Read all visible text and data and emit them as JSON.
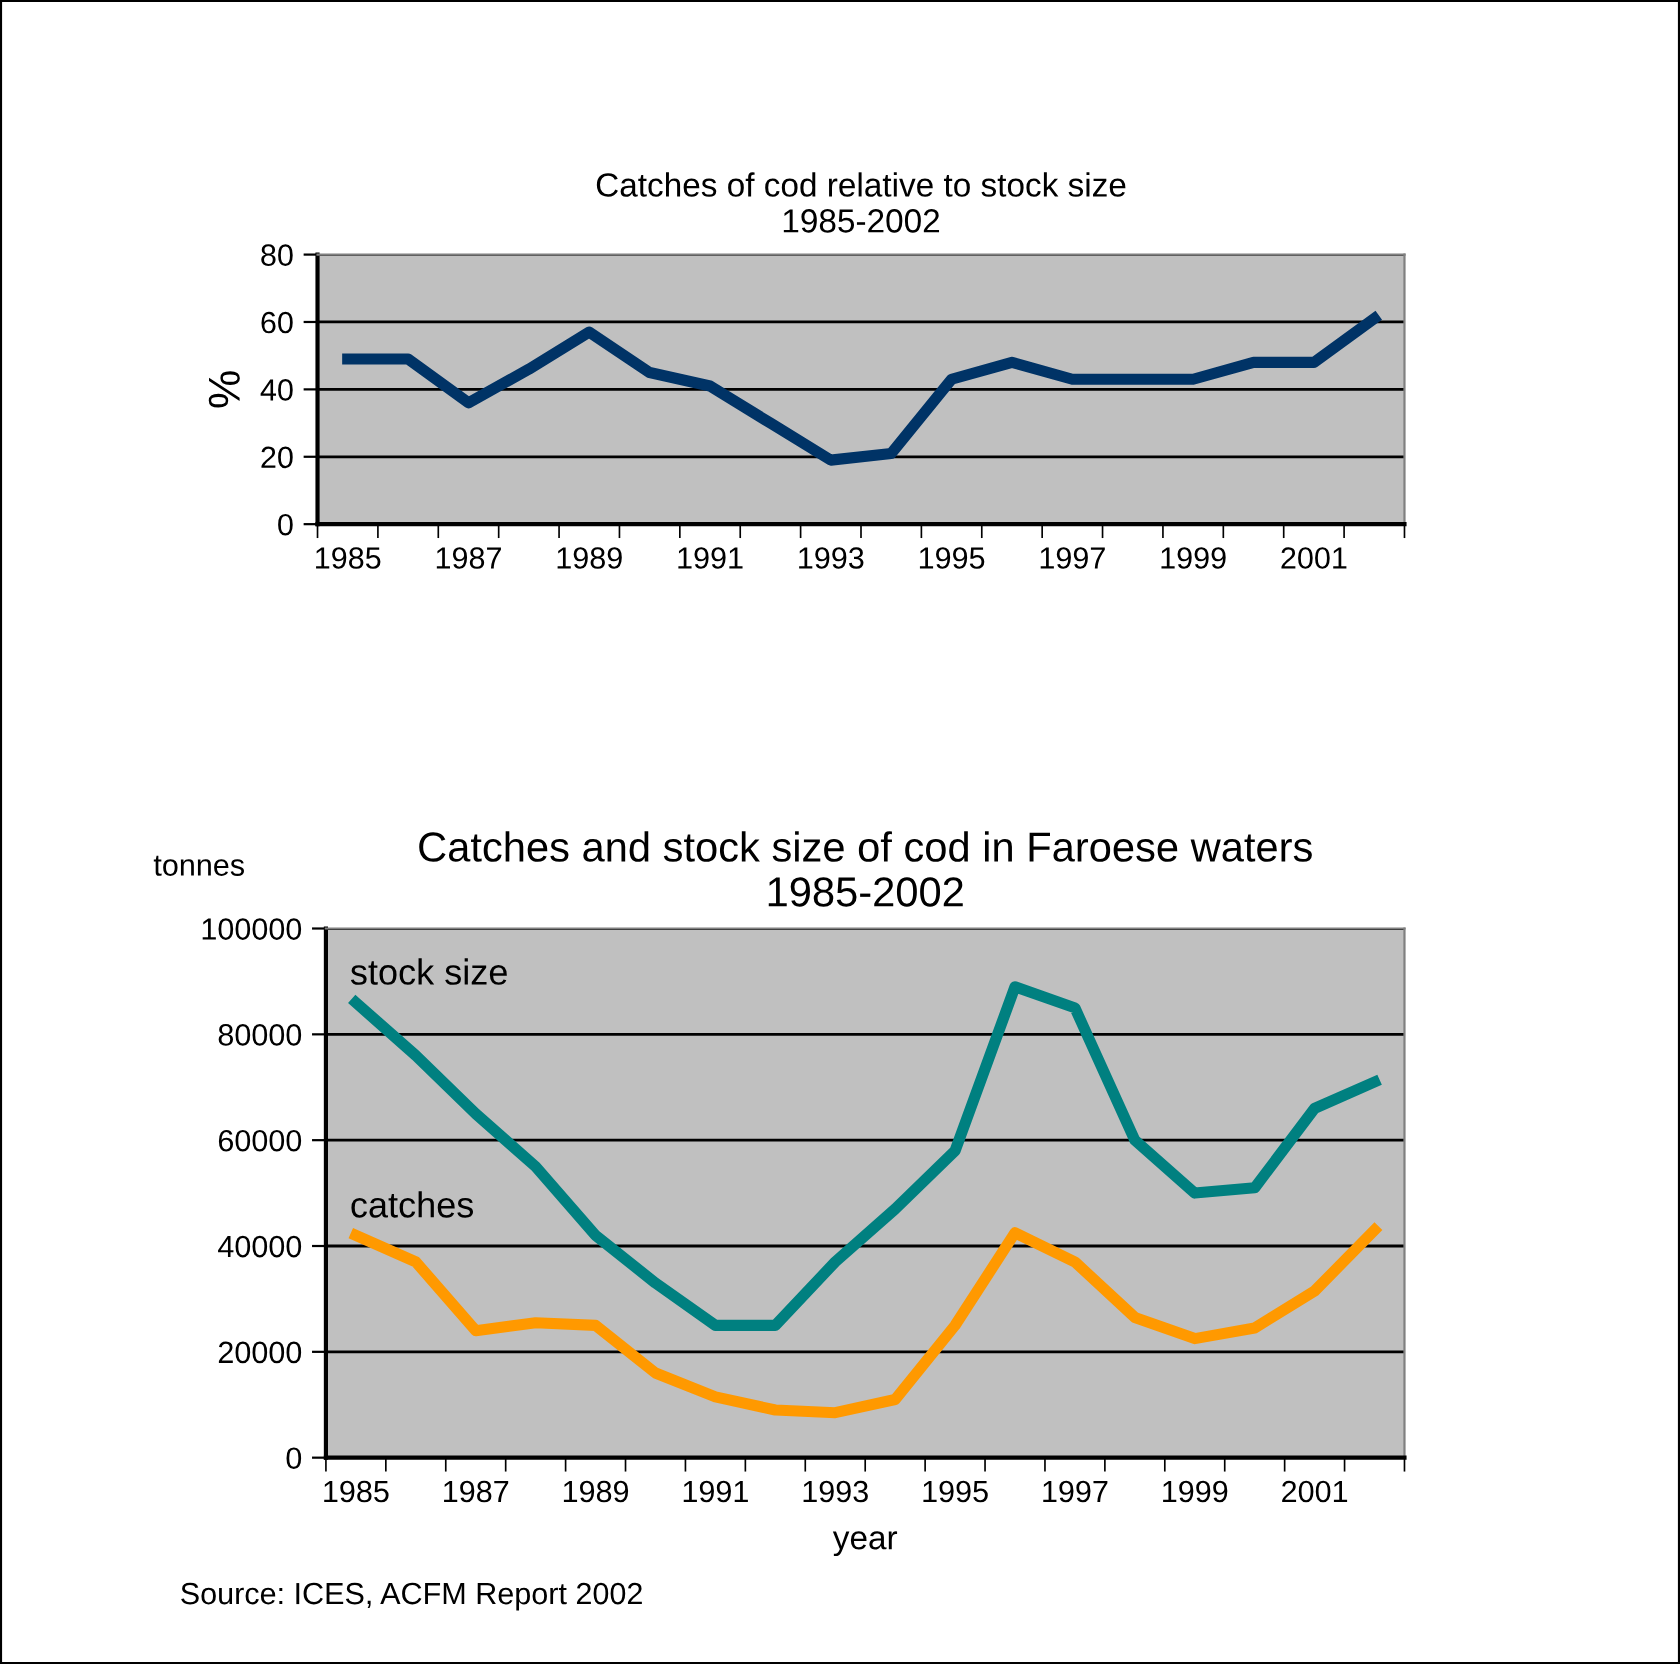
{
  "chart_data": [
    {
      "type": "line",
      "title": "Catches of cod relative to stock size\n1985-2002",
      "ylabel": "%",
      "categories": [
        "1985",
        null,
        "1987",
        null,
        "1989",
        null,
        "1991",
        null,
        "1993",
        null,
        "1995",
        null,
        "1997",
        null,
        "1999",
        null,
        "2001",
        null
      ],
      "series": [
        {
          "color": "#003366",
          "values": [
            49,
            49,
            36,
            46,
            57,
            45,
            41,
            30,
            19,
            21,
            43,
            48,
            43,
            43,
            43,
            48,
            48,
            61
          ]
        }
      ],
      "ylim": [
        0,
        80
      ],
      "yticks": [
        0,
        20,
        40,
        60,
        80
      ],
      "grid": "y",
      "marker": "none"
    },
    {
      "type": "line",
      "title": "Catches and stock size of cod in Faroese waters\n1985-2002",
      "ylabel": "tonnes",
      "xlabel": "year",
      "categories": [
        "1985",
        null,
        "1987",
        null,
        "1989",
        null,
        "1991",
        null,
        "1993",
        null,
        "1995",
        null,
        "1997",
        null,
        "1999",
        null,
        "2001",
        null
      ],
      "series": [
        {
          "name": "stock size",
          "color": "#008080",
          "values": [
            86000,
            76000,
            65000,
            55000,
            42000,
            33000,
            25000,
            25000,
            37000,
            47000,
            58000,
            89000,
            85000,
            60000,
            50000,
            51000,
            66000,
            71000
          ]
        },
        {
          "name": "catches",
          "color": "#ff9900",
          "values": [
            42000,
            37000,
            24000,
            25500,
            25000,
            16000,
            11500,
            9000,
            8500,
            11000,
            25000,
            42500,
            37000,
            26500,
            22500,
            24500,
            31500,
            43000
          ]
        }
      ],
      "ylim": [
        0,
        100000
      ],
      "yticks": [
        0,
        20000,
        40000,
        60000,
        80000,
        100000
      ],
      "grid": "y",
      "marker": "none",
      "annotations": [
        "Source: ICES, ACFM Report 2002"
      ]
    }
  ]
}
